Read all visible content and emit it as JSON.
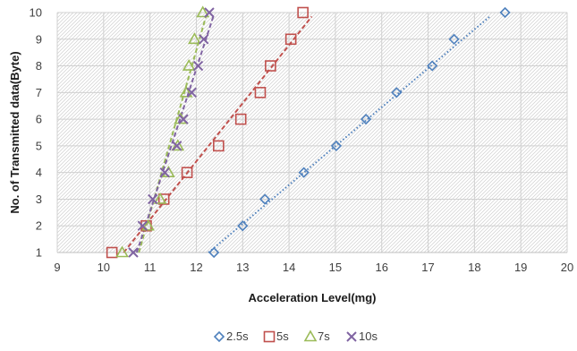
{
  "chart_data": {
    "type": "scatter",
    "title": "",
    "xlabel": "Acceleration Level(mg)",
    "ylabel": "No. of Transmitted data(Byte)",
    "xlim": [
      9,
      20
    ],
    "ylim": [
      1,
      10
    ],
    "x_ticks": [
      "9",
      "10",
      "11",
      "12",
      "13",
      "14",
      "15",
      "16",
      "17",
      "18",
      "19",
      "20"
    ],
    "y_ticks": [
      "1",
      "2",
      "3",
      "4",
      "5",
      "6",
      "7",
      "8",
      "9",
      "10"
    ],
    "grid": "hatched",
    "legend_position": "bottom",
    "series": [
      {
        "name": "2.5s",
        "marker": "diamond",
        "color": "#4f81bd",
        "trendline": "dotted",
        "x": [
          12.38,
          13.0,
          13.48,
          14.32,
          15.02,
          15.66,
          16.32,
          17.09,
          17.56,
          18.66
        ],
        "y": [
          1,
          2,
          3,
          4,
          5,
          6,
          7,
          8,
          9,
          10
        ]
      },
      {
        "name": "5s",
        "marker": "square",
        "color": "#c0504d",
        "trendline": "dashed",
        "x": [
          10.18,
          10.92,
          11.3,
          11.8,
          12.48,
          12.96,
          13.38,
          13.6,
          14.04,
          14.3
        ],
        "y": [
          1,
          2,
          3,
          4,
          5,
          6,
          7,
          8,
          9,
          10
        ]
      },
      {
        "name": "7s",
        "marker": "triangle",
        "color": "#9bbb59",
        "trendline": "dashed",
        "x": [
          10.4,
          10.96,
          11.22,
          11.4,
          11.6,
          11.66,
          11.78,
          11.84,
          11.96,
          12.14
        ],
        "y": [
          1,
          2,
          3,
          4,
          5,
          6,
          7,
          8,
          9,
          10
        ]
      },
      {
        "name": "10s",
        "marker": "x",
        "color": "#8064a2",
        "trendline": "dashed",
        "x": [
          10.64,
          10.84,
          11.06,
          11.32,
          11.58,
          11.72,
          11.9,
          12.04,
          12.16,
          12.28
        ],
        "y": [
          1,
          2,
          3,
          4,
          5,
          6,
          7,
          8,
          9,
          10
        ]
      }
    ]
  }
}
